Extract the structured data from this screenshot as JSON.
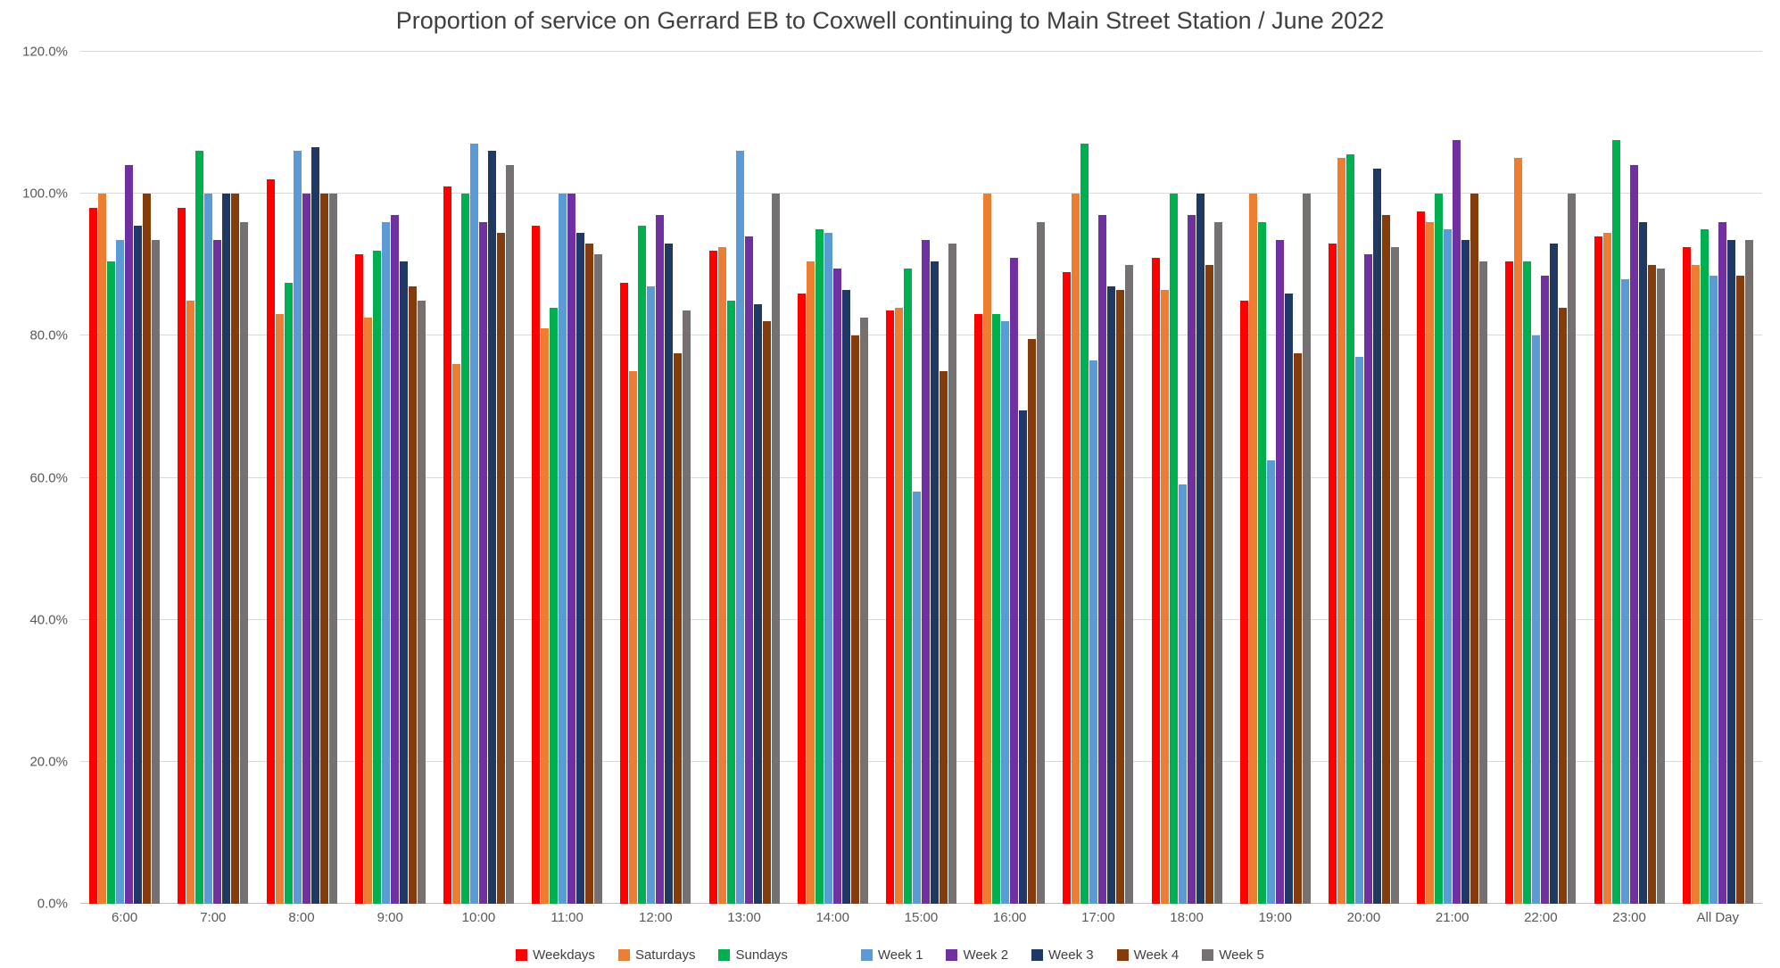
{
  "chart_data": {
    "type": "bar",
    "title": "Proportion of service on Gerrard EB to Coxwell continuing to Main Street Station / June 2022",
    "xlabel": "",
    "ylabel": "",
    "ylim": [
      0,
      120
    ],
    "ytick_step": 20,
    "ytick_labels": [
      "0.0%",
      "20.0%",
      "40.0%",
      "60.0%",
      "80.0%",
      "100.0%",
      "120.0%"
    ],
    "grid": true,
    "legend_position": "bottom",
    "categories": [
      "6:00",
      "7:00",
      "8:00",
      "9:00",
      "10:00",
      "11:00",
      "12:00",
      "13:00",
      "14:00",
      "15:00",
      "16:00",
      "17:00",
      "18:00",
      "19:00",
      "20:00",
      "21:00",
      "22:00",
      "23:00",
      "All Day"
    ],
    "series": [
      {
        "name": "Weekdays",
        "color": "#ff0000",
        "values": [
          98,
          98,
          102,
          91.5,
          101,
          95.5,
          87.5,
          92,
          86,
          83.5,
          83,
          89,
          91,
          85,
          93,
          97.5,
          90.5,
          94,
          92.5
        ]
      },
      {
        "name": "Saturdays",
        "color": "#ed7d31",
        "values": [
          100,
          85,
          83,
          82.5,
          76,
          81,
          75,
          92.5,
          90.5,
          84,
          100,
          100,
          86.5,
          100,
          105,
          96,
          105,
          94.5,
          90
        ]
      },
      {
        "name": "Sundays",
        "color": "#00b050",
        "values": [
          90.5,
          106,
          87.5,
          92,
          100,
          84,
          95.5,
          85,
          95,
          89.5,
          83,
          107,
          100,
          96,
          105.5,
          100,
          90.5,
          107.5,
          95
        ]
      },
      {
        "name": "Week 1",
        "color": "#5b9bd5",
        "values": [
          93.5,
          100,
          106,
          96,
          107,
          100,
          87,
          106,
          94.5,
          58,
          82,
          76.5,
          59,
          62.5,
          77,
          95,
          80,
          88,
          88.5
        ]
      },
      {
        "name": "Week 2",
        "color": "#7030a0",
        "values": [
          104,
          93.5,
          100,
          97,
          96,
          100,
          97,
          94,
          89.5,
          93.5,
          91,
          97,
          97,
          93.5,
          91.5,
          107.5,
          88.5,
          104,
          96
        ]
      },
      {
        "name": "Week 3",
        "color": "#1f3864",
        "values": [
          95.5,
          100,
          106.5,
          90.5,
          106,
          94.5,
          93,
          84.5,
          86.5,
          90.5,
          69.5,
          87,
          100,
          86,
          103.5,
          93.5,
          93,
          96,
          93.5
        ]
      },
      {
        "name": "Week 4",
        "color": "#843c0c",
        "values": [
          100,
          100,
          100,
          87,
          94.5,
          93,
          77.5,
          82,
          80,
          75,
          79.5,
          86.5,
          90,
          77.5,
          97,
          100,
          84,
          90,
          88.5
        ]
      },
      {
        "name": "Week 5",
        "color": "#767171",
        "values": [
          93.5,
          96,
          100,
          85,
          104,
          91.5,
          83.5,
          100,
          82.5,
          93,
          96,
          90,
          96,
          100,
          92.5,
          90.5,
          100,
          89.5,
          93.5
        ]
      }
    ]
  }
}
